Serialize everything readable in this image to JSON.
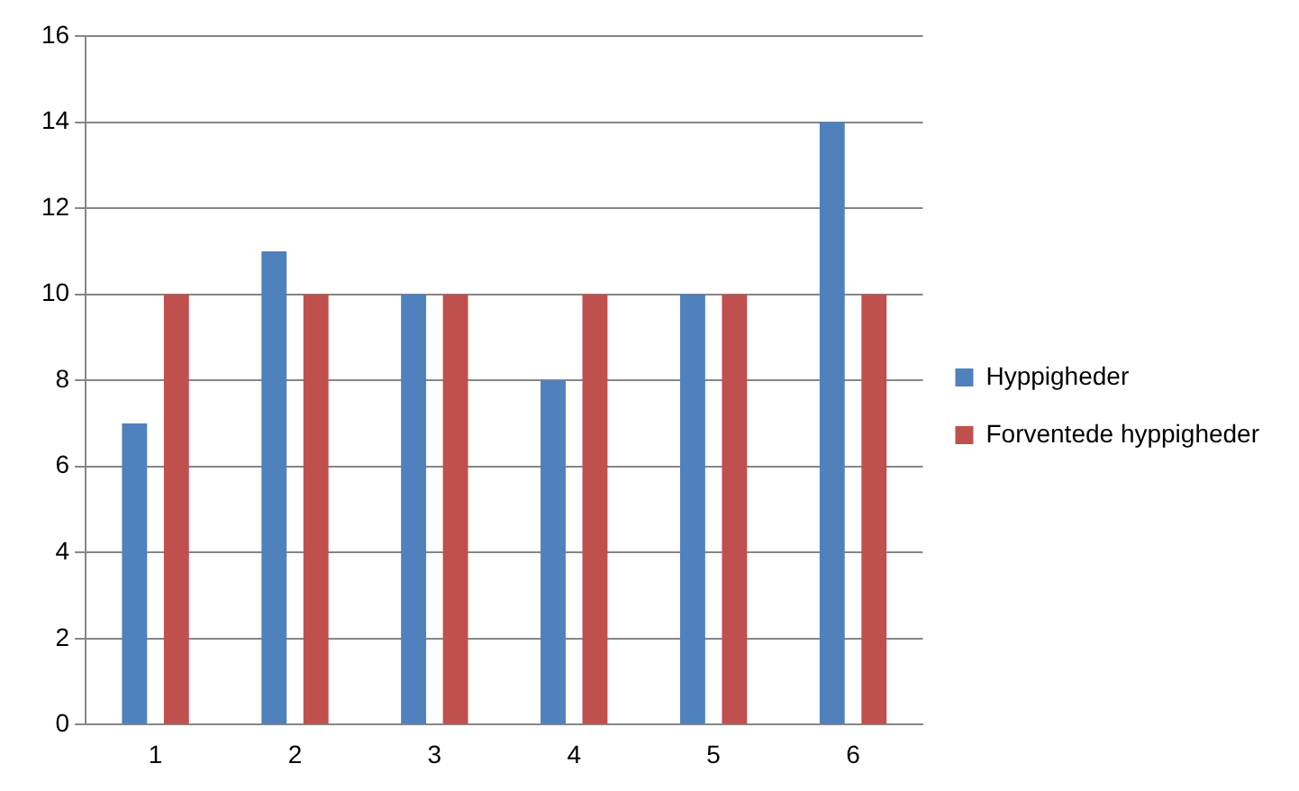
{
  "chart_data": {
    "type": "bar",
    "categories": [
      "1",
      "2",
      "3",
      "4",
      "5",
      "6"
    ],
    "series": [
      {
        "name": "Hyppigheder",
        "color": "#4f81bd",
        "values": [
          7,
          11,
          10,
          8,
          10,
          14
        ]
      },
      {
        "name": "Forventede hyppigheder",
        "color": "#c0504d",
        "values": [
          10,
          10,
          10,
          10,
          10,
          10
        ]
      }
    ],
    "ylim": [
      0,
      16
    ],
    "yticks": [
      0,
      2,
      4,
      6,
      8,
      10,
      12,
      14,
      16
    ],
    "grid": "y",
    "legend": "right"
  }
}
